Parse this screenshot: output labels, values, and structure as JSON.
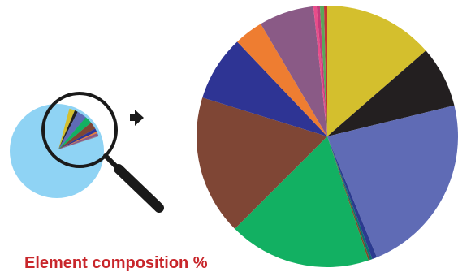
{
  "title": "Element composition %",
  "colors": {
    "title": "#c8262b",
    "small_pie_base": "#8fd3f4",
    "magnifier": "#1a1a1a",
    "arrow": "#1a1a1a"
  },
  "icons": {
    "arrow": "arrow-right-icon",
    "magnifier": "magnifying-glass-icon"
  },
  "chart_data": {
    "type": "pie",
    "title": "",
    "start_angle_deg": 0,
    "direction": "clockwise",
    "slices": [
      {
        "value": 13.6,
        "color": "#d4bf2d"
      },
      {
        "value": 7.6,
        "color": "#231f20"
      },
      {
        "value": 22.6,
        "color": "#5f6bb5"
      },
      {
        "value": 0.6,
        "color": "#2b3a8f"
      },
      {
        "value": 0.3,
        "color": "#0f6e6e"
      },
      {
        "value": 0.2,
        "color": "#7b4b2a"
      },
      {
        "value": 17.6,
        "color": "#12b062"
      },
      {
        "value": 17.3,
        "color": "#7f4635"
      },
      {
        "value": 8.1,
        "color": "#2e3494"
      },
      {
        "value": 3.6,
        "color": "#ee7d31"
      },
      {
        "value": 6.8,
        "color": "#8a5a86"
      },
      {
        "value": 0.4,
        "color": "#e84d8a"
      },
      {
        "value": 0.4,
        "color": "#c43b7c"
      },
      {
        "value": 0.5,
        "color": "#5aa65a"
      },
      {
        "value": 0.4,
        "color": "#c23434"
      }
    ]
  }
}
